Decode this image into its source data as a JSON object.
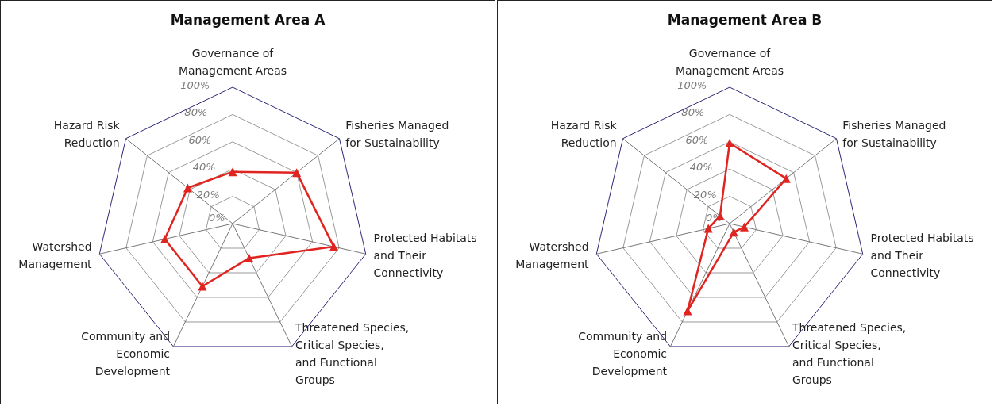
{
  "chart_data": [
    {
      "type": "radar",
      "title": "Management Area A",
      "categories": [
        "Governance of Management Areas",
        "Fisheries Managed for Sustainability",
        "Protected Habitats and Their Connectivity",
        "Threatened Species, Critical Species, and Functional Groups",
        "Community and Economic Development",
        "Watershed Management",
        "Hazard Risk Reduction"
      ],
      "series": [
        {
          "color": "#e02420",
          "values": [
            38,
            60,
            76,
            28,
            51,
            51,
            42
          ]
        }
      ],
      "ylim": [
        0,
        100
      ],
      "yticks": [
        {
          "value": 0,
          "label": "0%"
        },
        {
          "value": 20,
          "label": "20%"
        },
        {
          "value": 40,
          "label": "40%"
        },
        {
          "value": 60,
          "label": "60%"
        },
        {
          "value": 80,
          "label": "80%"
        },
        {
          "value": 100,
          "label": "100%"
        }
      ],
      "marker": "triangle",
      "line_style": "solid",
      "grid": true
    },
    {
      "type": "radar",
      "title": "Management Area B",
      "categories": [
        "Governance of Management Areas",
        "Fisheries Managed for Sustainability",
        "Protected Habitats and Their Connectivity",
        "Threatened Species, Critical Species, and Functional Groups",
        "Community and Economic Development",
        "Watershed Management",
        "Hazard Risk Reduction"
      ],
      "series": [
        {
          "color": "#e02420",
          "values": [
            59,
            53,
            11,
            7,
            71,
            16,
            9
          ]
        }
      ],
      "ylim": [
        0,
        100
      ],
      "yticks": [
        {
          "value": 0,
          "label": "0%"
        },
        {
          "value": 20,
          "label": "20%"
        },
        {
          "value": 40,
          "label": "40%"
        },
        {
          "value": 60,
          "label": "60%"
        },
        {
          "value": 80,
          "label": "80%"
        },
        {
          "value": 100,
          "label": "100%"
        }
      ],
      "marker": "triangle",
      "line_style": "solid",
      "grid": true
    }
  ]
}
